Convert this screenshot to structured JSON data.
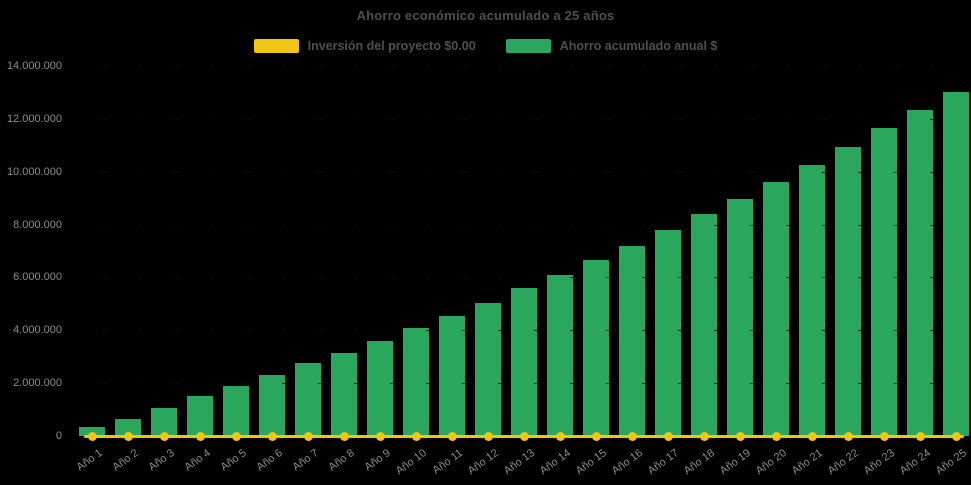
{
  "title": "Ahorro económico acumulado a 25 años",
  "colors": {
    "background": "#000000",
    "bar_green": "#2AA75C",
    "line_yellow": "#F0C514",
    "title_text": "#4f4f4f",
    "axis_text": "#8c8c8c"
  },
  "legend": {
    "items": [
      {
        "label": "Inversión del proyecto $0.00",
        "color": "#F0C514"
      },
      {
        "label": "Ahorro acumulado anual $",
        "color": "#2AA75C"
      }
    ]
  },
  "chart_data": {
    "type": "bar",
    "title": "Ahorro económico acumulado a 25 años",
    "xlabel": "",
    "ylabel": "",
    "ylim": [
      0,
      14000000
    ],
    "ytick_step": 2000000,
    "ytick_labels": [
      "0",
      "2.000.000",
      "4.000.000",
      "6.000.000",
      "8.000.000",
      "10.000.000",
      "12.000.000",
      "14.000.000"
    ],
    "grid": "dashed-horizontal",
    "legend_position": "top",
    "categories": [
      "Año 1",
      "Año 2",
      "Año 3",
      "Año 4",
      "Año 5",
      "Año 6",
      "Año 7",
      "Año 8",
      "Año 9",
      "Año 10",
      "Año 11",
      "Año 12",
      "Año 13",
      "Año 14",
      "Año 15",
      "Año 16",
      "Año 17",
      "Año 18",
      "Año 19",
      "Año 20",
      "Año 21",
      "Año 22",
      "Año 23",
      "Año 24",
      "Año 25"
    ],
    "series": [
      {
        "name": "Inversión del proyecto $0.00",
        "type": "line",
        "color": "#F0C514",
        "values": [
          0,
          0,
          0,
          0,
          0,
          0,
          0,
          0,
          0,
          0,
          0,
          0,
          0,
          0,
          0,
          0,
          0,
          0,
          0,
          0,
          0,
          0,
          0,
          0,
          0
        ]
      },
      {
        "name": "Ahorro acumulado anual $",
        "type": "bar",
        "color": "#2AA75C",
        "values": [
          350000,
          650000,
          1050000,
          1500000,
          1900000,
          2300000,
          2750000,
          3150000,
          3600000,
          4100000,
          4550000,
          5050000,
          5600000,
          6100000,
          6650000,
          7200000,
          7800000,
          8400000,
          8950000,
          9600000,
          10250000,
          10950000,
          11650000,
          12350000,
          13000000
        ]
      }
    ]
  }
}
